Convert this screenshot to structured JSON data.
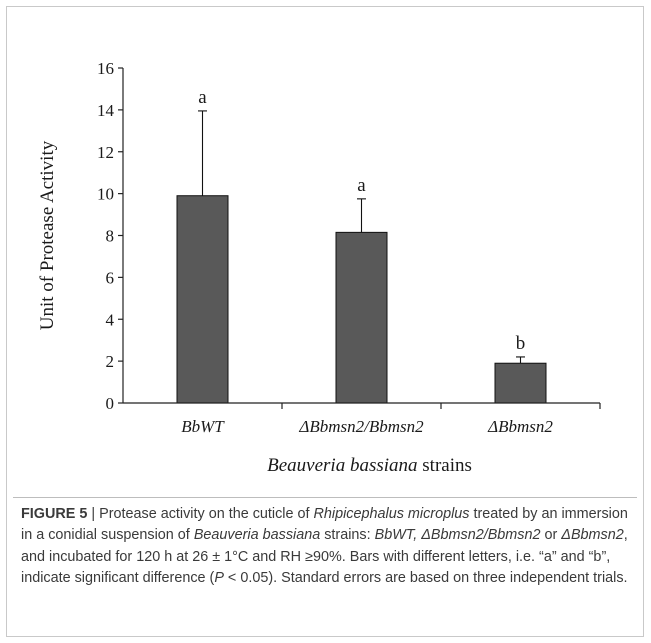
{
  "chart_data": {
    "type": "bar",
    "categories": [
      "BbWT",
      "ΔBbmsn2/Bbmsn2",
      "ΔBbmsn2"
    ],
    "values": [
      9.9,
      8.15,
      1.9
    ],
    "errors": [
      4.05,
      1.6,
      0.3
    ],
    "significance_letters": [
      "a",
      "a",
      "b"
    ],
    "title": "",
    "xlabel": "Beauveria bassiana strains",
    "xlabel_italic_part": "Beauveria bassiana",
    "xlabel_rest": " strains",
    "ylabel": "Unit of Protease Activity",
    "ylim": [
      0,
      16
    ],
    "yticks": [
      "0",
      "2",
      "4",
      "6",
      "8",
      "10",
      "12",
      "14",
      "16"
    ],
    "bar_color": "#595959",
    "grid": false,
    "legend": "none"
  },
  "caption": {
    "label": "FIGURE 5",
    "separator": " | ",
    "parts": [
      {
        "t": "Protease activity on the cuticle of ",
        "i": false
      },
      {
        "t": "Rhipicephalus microplus",
        "i": true
      },
      {
        "t": " treated by an immersion in a conidial suspension of ",
        "i": false
      },
      {
        "t": "Beauveria bassiana",
        "i": true
      },
      {
        "t": " strains: ",
        "i": false
      },
      {
        "t": "BbWT, ΔBbmsn2/Bbmsn2",
        "i": true
      },
      {
        "t": " or ",
        "i": false
      },
      {
        "t": "ΔBbmsn2",
        "i": true
      },
      {
        "t": ", and incubated for 120 h at 26 ± 1°C and RH ≥90%. Bars with different letters, i.e. “a” and “b”, indicate significant difference (",
        "i": false
      },
      {
        "t": "P",
        "i": true
      },
      {
        "t": " < 0.05). Standard errors are based on three independent trials.",
        "i": false
      }
    ]
  }
}
